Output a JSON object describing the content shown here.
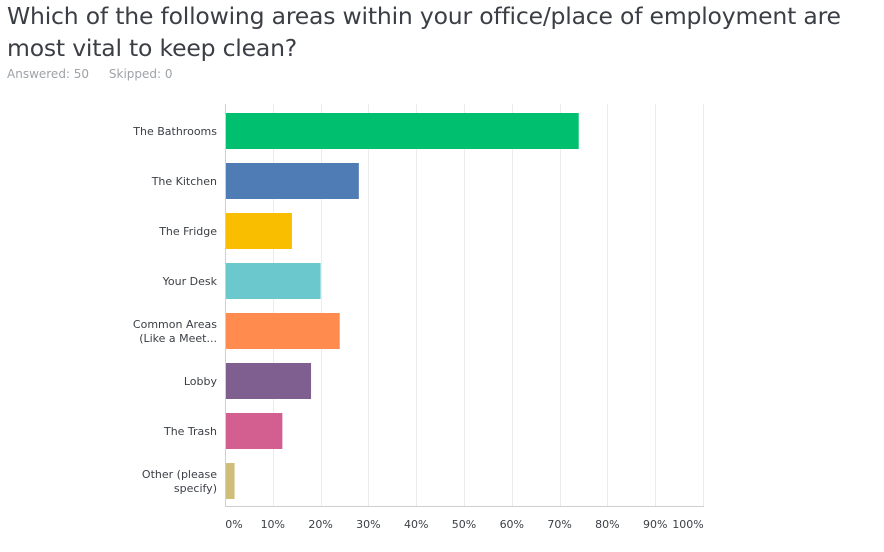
{
  "question": {
    "title": "Which of the following areas within your office/place of employment are most vital to keep clean?",
    "answered": "Answered: 50",
    "skipped": "Skipped: 0"
  },
  "chart_data": {
    "type": "bar",
    "orientation": "horizontal",
    "categories": [
      [
        "The Bathrooms"
      ],
      [
        "The Kitchen"
      ],
      [
        "The Fridge"
      ],
      [
        "Your Desk"
      ],
      [
        "Common Areas",
        "(Like a Meet..."
      ],
      [
        "Lobby"
      ],
      [
        "The Trash"
      ],
      [
        "Other (please",
        "specify)"
      ]
    ],
    "values": [
      74,
      28,
      14,
      20,
      24,
      18,
      12,
      2
    ],
    "colors": [
      "#00bf6f",
      "#507cb6",
      "#f9be00",
      "#6bc8cd",
      "#ff8b4f",
      "#7f5f90",
      "#d25f90",
      "#cfbd79"
    ],
    "xlim": [
      0,
      100
    ],
    "ticks": [
      0,
      10,
      20,
      30,
      40,
      50,
      60,
      70,
      80,
      90,
      100
    ],
    "tick_labels": [
      "0%",
      "10%",
      "20%",
      "30%",
      "40%",
      "50%",
      "60%",
      "70%",
      "80%",
      "90%",
      "100%"
    ],
    "grid": true,
    "unit": "%"
  }
}
